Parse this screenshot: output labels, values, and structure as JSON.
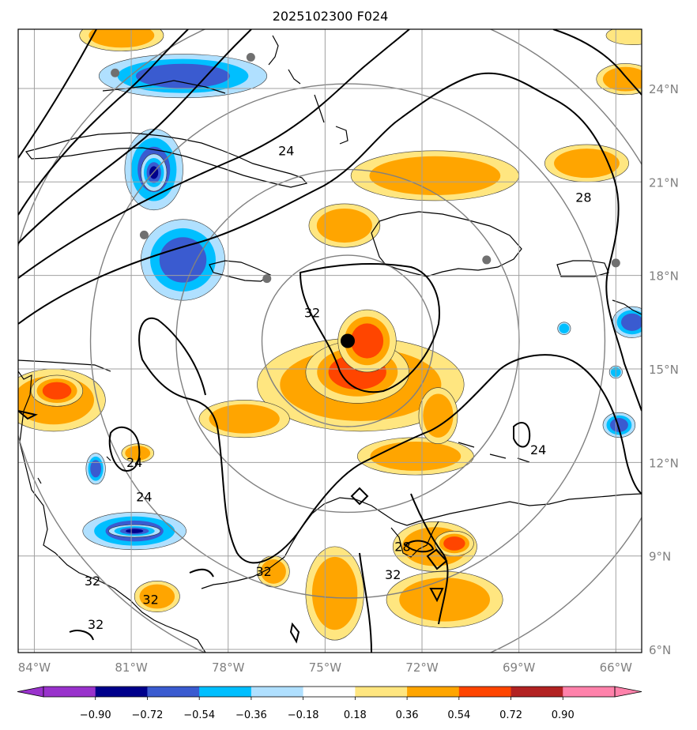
{
  "chart_data": {
    "type": "map-contour",
    "title": "2025102300 F024",
    "lon_range": [
      -84.5,
      -65.2
    ],
    "lat_range": [
      5.9,
      25.9
    ],
    "xticks": [
      {
        "lon": -84,
        "label": "84°W"
      },
      {
        "lon": -81,
        "label": "81°W"
      },
      {
        "lon": -78,
        "label": "78°W"
      },
      {
        "lon": -75,
        "label": "75°W"
      },
      {
        "lon": -72,
        "label": "72°W"
      },
      {
        "lon": -69,
        "label": "69°W"
      },
      {
        "lon": -66,
        "label": "66°W"
      }
    ],
    "yticks": [
      {
        "lat": 24,
        "label": "24°N"
      },
      {
        "lat": 21,
        "label": "21°N"
      },
      {
        "lat": 18,
        "label": "18°N"
      },
      {
        "lat": 15,
        "label": "15°N"
      },
      {
        "lat": 12,
        "label": "12°N"
      },
      {
        "lat": 9,
        "label": "9°N"
      },
      {
        "lat": 6,
        "label": "6°N"
      }
    ],
    "storm_center": {
      "lon": -74.3,
      "lat": 15.9
    },
    "range_ring_radii_deg": [
      2.75,
      5.5,
      8.25,
      11.0
    ],
    "colorbar": {
      "levels": [
        "−0.90",
        "−0.72",
        "−0.54",
        "−0.36",
        "−0.18",
        "0.18",
        "0.36",
        "0.54",
        "0.72",
        "0.90"
      ],
      "colors": [
        "#9932cc",
        "#00008b",
        "#3a5bd0",
        "#00bfff",
        "#b0e0ff",
        "#ffffff",
        "#ffe680",
        "#ffa500",
        "#ff4500",
        "#b22222",
        "#ff82ab"
      ]
    },
    "contour_labels": [
      {
        "text": "24",
        "lon": -76.2,
        "lat": 22.0
      },
      {
        "text": "28",
        "lon": -67.0,
        "lat": 20.5
      },
      {
        "text": "32",
        "lon": -75.4,
        "lat": 16.8
      },
      {
        "text": "24",
        "lon": -80.9,
        "lat": 12.0
      },
      {
        "text": "24",
        "lon": -80.6,
        "lat": 10.9
      },
      {
        "text": "24",
        "lon": -68.4,
        "lat": 12.4
      },
      {
        "text": "28",
        "lon": -72.6,
        "lat": 9.3
      },
      {
        "text": "32",
        "lon": -72.9,
        "lat": 8.4
      },
      {
        "text": "32",
        "lon": -76.9,
        "lat": 8.5
      },
      {
        "text": "32",
        "lon": -82.2,
        "lat": 8.2
      },
      {
        "text": "32",
        "lon": -80.4,
        "lat": 7.6
      },
      {
        "text": "32",
        "lon": -82.1,
        "lat": 6.8
      }
    ],
    "city_markers": [
      {
        "lon": -81.5,
        "lat": 24.5
      },
      {
        "lon": -77.3,
        "lat": 25.0
      },
      {
        "lon": -80.6,
        "lat": 19.3
      },
      {
        "lon": -76.8,
        "lat": 17.9
      },
      {
        "lon": -70.0,
        "lat": 18.5
      },
      {
        "lon": -66.0,
        "lat": 18.4
      }
    ],
    "positive_regions": [
      {
        "lon": -73.9,
        "lat": 14.5,
        "rx": 3.2,
        "ry": 1.5,
        "level": 2
      },
      {
        "lon": -74.0,
        "lat": 14.9,
        "rx": 1.6,
        "ry": 1.0,
        "level": 3
      },
      {
        "lon": -73.7,
        "lat": 15.9,
        "rx": 0.9,
        "ry": 1.0,
        "level": 3
      },
      {
        "lon": -77.5,
        "lat": 13.4,
        "rx": 1.4,
        "ry": 0.6,
        "level": 2
      },
      {
        "lon": -83.4,
        "lat": 14.0,
        "rx": 1.6,
        "ry": 1.0,
        "level": 2
      },
      {
        "lon": -83.3,
        "lat": 14.3,
        "rx": 0.8,
        "ry": 0.5,
        "level": 3
      },
      {
        "lon": -71.6,
        "lat": 21.2,
        "rx": 2.6,
        "ry": 0.8,
        "level": 2
      },
      {
        "lon": -66.9,
        "lat": 21.6,
        "rx": 1.3,
        "ry": 0.6,
        "level": 2
      },
      {
        "lon": -65.7,
        "lat": 24.3,
        "rx": 0.9,
        "ry": 0.5,
        "level": 2
      },
      {
        "lon": -74.4,
        "lat": 19.6,
        "rx": 1.1,
        "ry": 0.7,
        "level": 2
      },
      {
        "lon": -72.2,
        "lat": 12.2,
        "rx": 1.8,
        "ry": 0.6,
        "level": 2
      },
      {
        "lon": -71.5,
        "lat": 13.5,
        "rx": 0.6,
        "ry": 0.9,
        "level": 2
      },
      {
        "lon": -71.6,
        "lat": 9.3,
        "rx": 1.3,
        "ry": 0.8,
        "level": 2
      },
      {
        "lon": -71.0,
        "lat": 9.4,
        "rx": 0.6,
        "ry": 0.4,
        "level": 3
      },
      {
        "lon": -71.3,
        "lat": 7.6,
        "rx": 1.8,
        "ry": 0.9,
        "level": 2
      },
      {
        "lon": -74.7,
        "lat": 7.8,
        "rx": 0.9,
        "ry": 1.5,
        "level": 2
      },
      {
        "lon": -80.2,
        "lat": 7.7,
        "rx": 0.7,
        "ry": 0.5,
        "level": 2
      },
      {
        "lon": -81.3,
        "lat": 25.7,
        "rx": 1.3,
        "ry": 0.5,
        "level": 2
      },
      {
        "lon": -76.6,
        "lat": 8.5,
        "rx": 0.5,
        "ry": 0.5,
        "level": 2
      },
      {
        "lon": -80.8,
        "lat": 12.3,
        "rx": 0.5,
        "ry": 0.3,
        "level": 2
      },
      {
        "lon": -65.5,
        "lat": 25.7,
        "rx": 0.8,
        "ry": 0.3,
        "level": 1
      }
    ],
    "negative_regions": [
      {
        "lon": -79.4,
        "lat": 24.4,
        "rx": 2.6,
        "ry": 0.7,
        "level": 3
      },
      {
        "lon": -80.3,
        "lat": 21.4,
        "rx": 0.9,
        "ry": 1.3,
        "level": 3
      },
      {
        "lon": -80.3,
        "lat": 21.3,
        "rx": 0.4,
        "ry": 0.6,
        "level": 4
      },
      {
        "lon": -79.4,
        "lat": 18.5,
        "rx": 1.3,
        "ry": 1.3,
        "level": 3
      },
      {
        "lon": -80.9,
        "lat": 9.8,
        "rx": 1.6,
        "ry": 0.6,
        "level": 3
      },
      {
        "lon": -80.9,
        "lat": 9.8,
        "rx": 0.8,
        "ry": 0.2,
        "level": 4
      },
      {
        "lon": -82.1,
        "lat": 11.8,
        "rx": 0.3,
        "ry": 0.5,
        "level": 3
      },
      {
        "lon": -65.5,
        "lat": 16.5,
        "rx": 0.6,
        "ry": 0.5,
        "level": 3
      },
      {
        "lon": -65.9,
        "lat": 13.2,
        "rx": 0.5,
        "ry": 0.4,
        "level": 3
      },
      {
        "lon": -66.0,
        "lat": 14.9,
        "rx": 0.2,
        "ry": 0.2,
        "level": 2
      },
      {
        "lon": -67.6,
        "lat": 16.3,
        "rx": 0.2,
        "ry": 0.2,
        "level": 2
      }
    ]
  }
}
